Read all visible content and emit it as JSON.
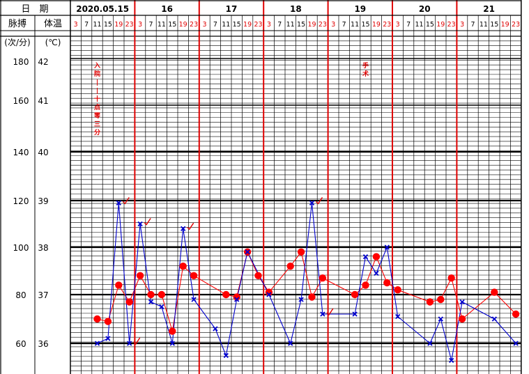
{
  "header": {
    "date_label": "日　期",
    "pulse_label": "脉搏",
    "temp_label": "体温",
    "pulse_unit": "(次/分)",
    "temp_unit": "(℃)",
    "days": [
      "2020.05.15",
      "16",
      "17",
      "18",
      "19",
      "20",
      "21"
    ],
    "hours": [
      "3",
      "7",
      "11",
      "15",
      "19",
      "23"
    ]
  },
  "annotations": {
    "admission": [
      "入",
      "院",
      "|",
      "|",
      "十",
      "点",
      "零",
      "三",
      "分"
    ],
    "surgery": [
      "手",
      "术"
    ]
  },
  "chart_data": {
    "type": "line",
    "pulse_axis": {
      "ticks": [
        "60",
        "80",
        "100",
        "120",
        "140",
        "160",
        "180"
      ]
    },
    "temp_axis": {
      "ticks": [
        "36",
        "37",
        "38",
        "39",
        "40",
        "41",
        "42"
      ]
    },
    "series": [
      {
        "marker": "circle",
        "color": "#ff0000",
        "axis": "pulse",
        "points": [
          [
            2,
            70
          ],
          [
            3,
            69
          ],
          [
            4,
            84
          ],
          [
            5,
            77
          ],
          [
            6,
            88
          ],
          [
            7,
            80
          ],
          [
            8,
            80
          ],
          [
            9,
            65
          ],
          [
            10,
            92
          ],
          [
            11,
            88
          ],
          [
            14,
            80
          ],
          [
            15,
            79
          ],
          [
            16,
            98
          ],
          [
            17,
            88
          ],
          [
            18,
            81
          ],
          [
            20,
            92
          ],
          [
            21,
            98
          ],
          [
            22,
            79
          ],
          [
            23,
            87
          ],
          [
            26,
            80
          ],
          [
            27,
            84
          ],
          [
            28,
            96
          ],
          [
            29,
            85
          ],
          [
            30,
            82
          ],
          [
            33,
            77
          ],
          [
            34,
            78
          ],
          [
            35,
            87
          ],
          [
            36,
            70
          ],
          [
            39,
            81
          ],
          [
            41,
            72
          ]
        ]
      },
      {
        "marker": "cross",
        "color": "#0000cc",
        "axis": "pulse",
        "points": [
          [
            2,
            60
          ],
          [
            3,
            62
          ],
          [
            4,
            119
          ],
          [
            5,
            60
          ],
          [
            6,
            110
          ],
          [
            7,
            77
          ],
          [
            8,
            75
          ],
          [
            9,
            60
          ],
          [
            10,
            108
          ],
          [
            11,
            78
          ],
          [
            13,
            66
          ],
          [
            14,
            55
          ],
          [
            15,
            78
          ],
          [
            16,
            98
          ],
          [
            18,
            80
          ],
          [
            20,
            60
          ],
          [
            21,
            78
          ],
          [
            22,
            119
          ],
          [
            23,
            72
          ],
          [
            26,
            72
          ],
          [
            27,
            96
          ],
          [
            28,
            89
          ],
          [
            29,
            100
          ],
          [
            30,
            71
          ],
          [
            33,
            60
          ],
          [
            34,
            70
          ],
          [
            35,
            53
          ],
          [
            36,
            77
          ],
          [
            39,
            70
          ],
          [
            41,
            60
          ]
        ]
      }
    ],
    "checkmarks": [
      [
        4,
        119
      ],
      [
        5,
        60
      ],
      [
        6,
        110
      ],
      [
        10,
        108
      ],
      [
        22,
        119
      ],
      [
        23,
        72
      ]
    ]
  }
}
